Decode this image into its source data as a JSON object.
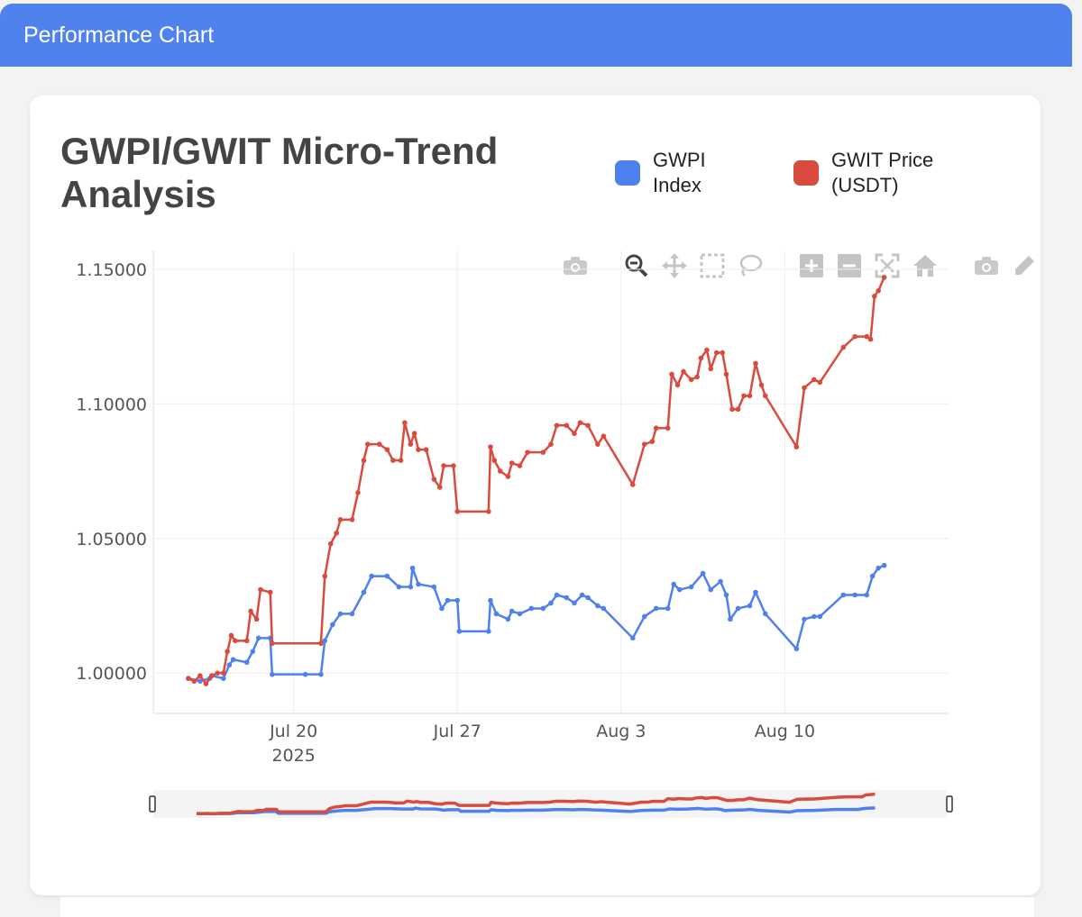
{
  "window": {
    "title": "Performance Chart"
  },
  "colors": {
    "header": "#5082ee",
    "gwpi": "#4f81ee",
    "gwit": "#d94b3d"
  },
  "toolbar": {
    "icons": [
      "camera-icon",
      "zoom-icon",
      "pan-icon",
      "box-select-icon",
      "lasso-select-icon",
      "zoom-in-icon",
      "zoom-out-icon",
      "autoscale-icon",
      "reset-axes-icon",
      "download-icon",
      "edit-icon"
    ]
  },
  "chart_data": {
    "type": "line",
    "title": "GWPI/GWIT Micro-Trend Analysis",
    "legend": {
      "position": "top-right"
    },
    "x_ticks": [
      {
        "date": "2025-07-20",
        "label": "Jul 20",
        "sublabel": "2025"
      },
      {
        "date": "2025-07-27",
        "label": "Jul 27",
        "sublabel": ""
      },
      {
        "date": "2025-08-03",
        "label": "Aug 3",
        "sublabel": ""
      },
      {
        "date": "2025-08-10",
        "label": "Aug 10",
        "sublabel": ""
      }
    ],
    "y_ticks": [
      "1.00000",
      "1.05000",
      "1.10000",
      "1.15000"
    ],
    "xlim": [
      "2025-07-14",
      "2025-08-17"
    ],
    "ylim": [
      0.985,
      1.157
    ],
    "grid": true,
    "rangeslider": true,
    "series": [
      {
        "name": "GWPI Index",
        "points": [
          [
            "2025-07-15T12:00",
            0.998
          ],
          [
            "2025-07-16T00:00",
            0.997
          ],
          [
            "2025-07-16T10:00",
            0.998
          ],
          [
            "2025-07-16T12:00",
            0.999
          ],
          [
            "2025-07-17T00:00",
            0.998
          ],
          [
            "2025-07-17T06:00",
            1.003
          ],
          [
            "2025-07-17T10:00",
            1.005
          ],
          [
            "2025-07-18T00:00",
            1.004
          ],
          [
            "2025-07-18T06:00",
            1.008
          ],
          [
            "2025-07-18T12:00",
            1.013
          ],
          [
            "2025-07-19T00:00",
            1.013
          ],
          [
            "2025-07-19T02:00",
            0.9995
          ],
          [
            "2025-07-20T12:00",
            0.9995
          ],
          [
            "2025-07-21T04:00",
            0.9995
          ],
          [
            "2025-07-21T08:00",
            1.012
          ],
          [
            "2025-07-21T16:00",
            1.018
          ],
          [
            "2025-07-22T00:00",
            1.022
          ],
          [
            "2025-07-22T12:00",
            1.022
          ],
          [
            "2025-07-23T00:00",
            1.03
          ],
          [
            "2025-07-23T08:00",
            1.036
          ],
          [
            "2025-07-24T00:00",
            1.036
          ],
          [
            "2025-07-24T12:00",
            1.032
          ],
          [
            "2025-07-25T00:00",
            1.032
          ],
          [
            "2025-07-25T02:00",
            1.039
          ],
          [
            "2025-07-25T08:00",
            1.033
          ],
          [
            "2025-07-26T00:00",
            1.032
          ],
          [
            "2025-07-26T08:00",
            1.024
          ],
          [
            "2025-07-26T14:00",
            1.027
          ],
          [
            "2025-07-27T00:00",
            1.027
          ],
          [
            "2025-07-27T02:00",
            1.0155
          ],
          [
            "2025-07-28T08:00",
            1.0155
          ],
          [
            "2025-07-28T10:00",
            1.027
          ],
          [
            "2025-07-28T16:00",
            1.022
          ],
          [
            "2025-07-29T04:00",
            1.02
          ],
          [
            "2025-07-29T08:00",
            1.023
          ],
          [
            "2025-07-29T16:00",
            1.022
          ],
          [
            "2025-07-30T04:00",
            1.024
          ],
          [
            "2025-07-30T16:00",
            1.024
          ],
          [
            "2025-07-31T00:00",
            1.026
          ],
          [
            "2025-07-31T06:00",
            1.029
          ],
          [
            "2025-07-31T16:00",
            1.028
          ],
          [
            "2025-08-01T00:00",
            1.026
          ],
          [
            "2025-08-01T08:00",
            1.029
          ],
          [
            "2025-08-01T14:00",
            1.028
          ],
          [
            "2025-08-02T00:00",
            1.025
          ],
          [
            "2025-08-02T06:00",
            1.024
          ],
          [
            "2025-08-03T12:00",
            1.013
          ],
          [
            "2025-08-04T00:00",
            1.021
          ],
          [
            "2025-08-04T12:00",
            1.024
          ],
          [
            "2025-08-05T00:00",
            1.024
          ],
          [
            "2025-08-05T06:00",
            1.033
          ],
          [
            "2025-08-05T12:00",
            1.031
          ],
          [
            "2025-08-06T00:00",
            1.032
          ],
          [
            "2025-08-06T12:00",
            1.037
          ],
          [
            "2025-08-06T20:00",
            1.031
          ],
          [
            "2025-08-07T06:00",
            1.034
          ],
          [
            "2025-08-07T12:00",
            1.029
          ],
          [
            "2025-08-07T16:00",
            1.02
          ],
          [
            "2025-08-08T00:00",
            1.024
          ],
          [
            "2025-08-08T12:00",
            1.025
          ],
          [
            "2025-08-08T18:00",
            1.03
          ],
          [
            "2025-08-09T04:00",
            1.022
          ],
          [
            "2025-08-10T12:00",
            1.009
          ],
          [
            "2025-08-10T20:00",
            1.02
          ],
          [
            "2025-08-11T06:00",
            1.021
          ],
          [
            "2025-08-11T12:00",
            1.021
          ],
          [
            "2025-08-12T12:00",
            1.029
          ],
          [
            "2025-08-13T00:00",
            1.029
          ],
          [
            "2025-08-13T12:00",
            1.029
          ],
          [
            "2025-08-13T18:00",
            1.036
          ],
          [
            "2025-08-14T00:00",
            1.039
          ],
          [
            "2025-08-14T06:00",
            1.04
          ]
        ]
      },
      {
        "name": "GWIT Price (USDT)",
        "points": [
          [
            "2025-07-15T12:00",
            0.998
          ],
          [
            "2025-07-15T18:00",
            0.997
          ],
          [
            "2025-07-16T00:00",
            0.999
          ],
          [
            "2025-07-16T06:00",
            0.996
          ],
          [
            "2025-07-16T12:00",
            0.999
          ],
          [
            "2025-07-16T18:00",
            1.0
          ],
          [
            "2025-07-17T00:00",
            1.0
          ],
          [
            "2025-07-17T04:00",
            1.008
          ],
          [
            "2025-07-17T08:00",
            1.014
          ],
          [
            "2025-07-17T12:00",
            1.012
          ],
          [
            "2025-07-18T00:00",
            1.012
          ],
          [
            "2025-07-18T04:00",
            1.023
          ],
          [
            "2025-07-18T10:00",
            1.02
          ],
          [
            "2025-07-18T14:00",
            1.031
          ],
          [
            "2025-07-19T00:00",
            1.03
          ],
          [
            "2025-07-19T02:00",
            1.011
          ],
          [
            "2025-07-21T04:00",
            1.011
          ],
          [
            "2025-07-21T08:00",
            1.036
          ],
          [
            "2025-07-21T14:00",
            1.048
          ],
          [
            "2025-07-21T20:00",
            1.052
          ],
          [
            "2025-07-22T00:00",
            1.057
          ],
          [
            "2025-07-22T12:00",
            1.057
          ],
          [
            "2025-07-22T18:00",
            1.067
          ],
          [
            "2025-07-23T00:00",
            1.079
          ],
          [
            "2025-07-23T04:00",
            1.085
          ],
          [
            "2025-07-23T16:00",
            1.085
          ],
          [
            "2025-07-24T00:00",
            1.083
          ],
          [
            "2025-07-24T06:00",
            1.079
          ],
          [
            "2025-07-24T14:00",
            1.079
          ],
          [
            "2025-07-24T18:00",
            1.093
          ],
          [
            "2025-07-25T00:00",
            1.085
          ],
          [
            "2025-07-25T04:00",
            1.089
          ],
          [
            "2025-07-25T08:00",
            1.083
          ],
          [
            "2025-07-25T16:00",
            1.083
          ],
          [
            "2025-07-26T00:00",
            1.072
          ],
          [
            "2025-07-26T06:00",
            1.069
          ],
          [
            "2025-07-26T10:00",
            1.077
          ],
          [
            "2025-07-26T20:00",
            1.077
          ],
          [
            "2025-07-27T00:00",
            1.06
          ],
          [
            "2025-07-28T08:00",
            1.06
          ],
          [
            "2025-07-28T10:00",
            1.084
          ],
          [
            "2025-07-28T14:00",
            1.079
          ],
          [
            "2025-07-28T20:00",
            1.075
          ],
          [
            "2025-07-29T04:00",
            1.073
          ],
          [
            "2025-07-29T08:00",
            1.078
          ],
          [
            "2025-07-29T16:00",
            1.077
          ],
          [
            "2025-07-30T00:00",
            1.082
          ],
          [
            "2025-07-30T16:00",
            1.082
          ],
          [
            "2025-07-31T00:00",
            1.085
          ],
          [
            "2025-07-31T06:00",
            1.092
          ],
          [
            "2025-07-31T16:00",
            1.092
          ],
          [
            "2025-08-01T00:00",
            1.089
          ],
          [
            "2025-08-01T06:00",
            1.093
          ],
          [
            "2025-08-01T14:00",
            1.092
          ],
          [
            "2025-08-02T00:00",
            1.085
          ],
          [
            "2025-08-02T06:00",
            1.088
          ],
          [
            "2025-08-03T12:00",
            1.07
          ],
          [
            "2025-08-04T00:00",
            1.085
          ],
          [
            "2025-08-04T08:00",
            1.086
          ],
          [
            "2025-08-04T12:00",
            1.091
          ],
          [
            "2025-08-05T00:00",
            1.091
          ],
          [
            "2025-08-05T04:00",
            1.111
          ],
          [
            "2025-08-05T10:00",
            1.107
          ],
          [
            "2025-08-05T16:00",
            1.112
          ],
          [
            "2025-08-06T00:00",
            1.109
          ],
          [
            "2025-08-06T06:00",
            1.11
          ],
          [
            "2025-08-06T10:00",
            1.117
          ],
          [
            "2025-08-06T16:00",
            1.12
          ],
          [
            "2025-08-06T20:00",
            1.113
          ],
          [
            "2025-08-07T02:00",
            1.119
          ],
          [
            "2025-08-07T08:00",
            1.119
          ],
          [
            "2025-08-07T12:00",
            1.111
          ],
          [
            "2025-08-07T18:00",
            1.098
          ],
          [
            "2025-08-08T00:00",
            1.098
          ],
          [
            "2025-08-08T06:00",
            1.103
          ],
          [
            "2025-08-08T12:00",
            1.103
          ],
          [
            "2025-08-08T18:00",
            1.115
          ],
          [
            "2025-08-09T00:00",
            1.107
          ],
          [
            "2025-08-09T04:00",
            1.103
          ],
          [
            "2025-08-10T12:00",
            1.084
          ],
          [
            "2025-08-10T20:00",
            1.106
          ],
          [
            "2025-08-11T06:00",
            1.109
          ],
          [
            "2025-08-11T12:00",
            1.108
          ],
          [
            "2025-08-12T12:00",
            1.121
          ],
          [
            "2025-08-13T00:00",
            1.125
          ],
          [
            "2025-08-13T12:00",
            1.125
          ],
          [
            "2025-08-13T16:00",
            1.124
          ],
          [
            "2025-08-13T20:00",
            1.14
          ],
          [
            "2025-08-14T00:00",
            1.142
          ],
          [
            "2025-08-14T06:00",
            1.147
          ]
        ]
      }
    ]
  }
}
